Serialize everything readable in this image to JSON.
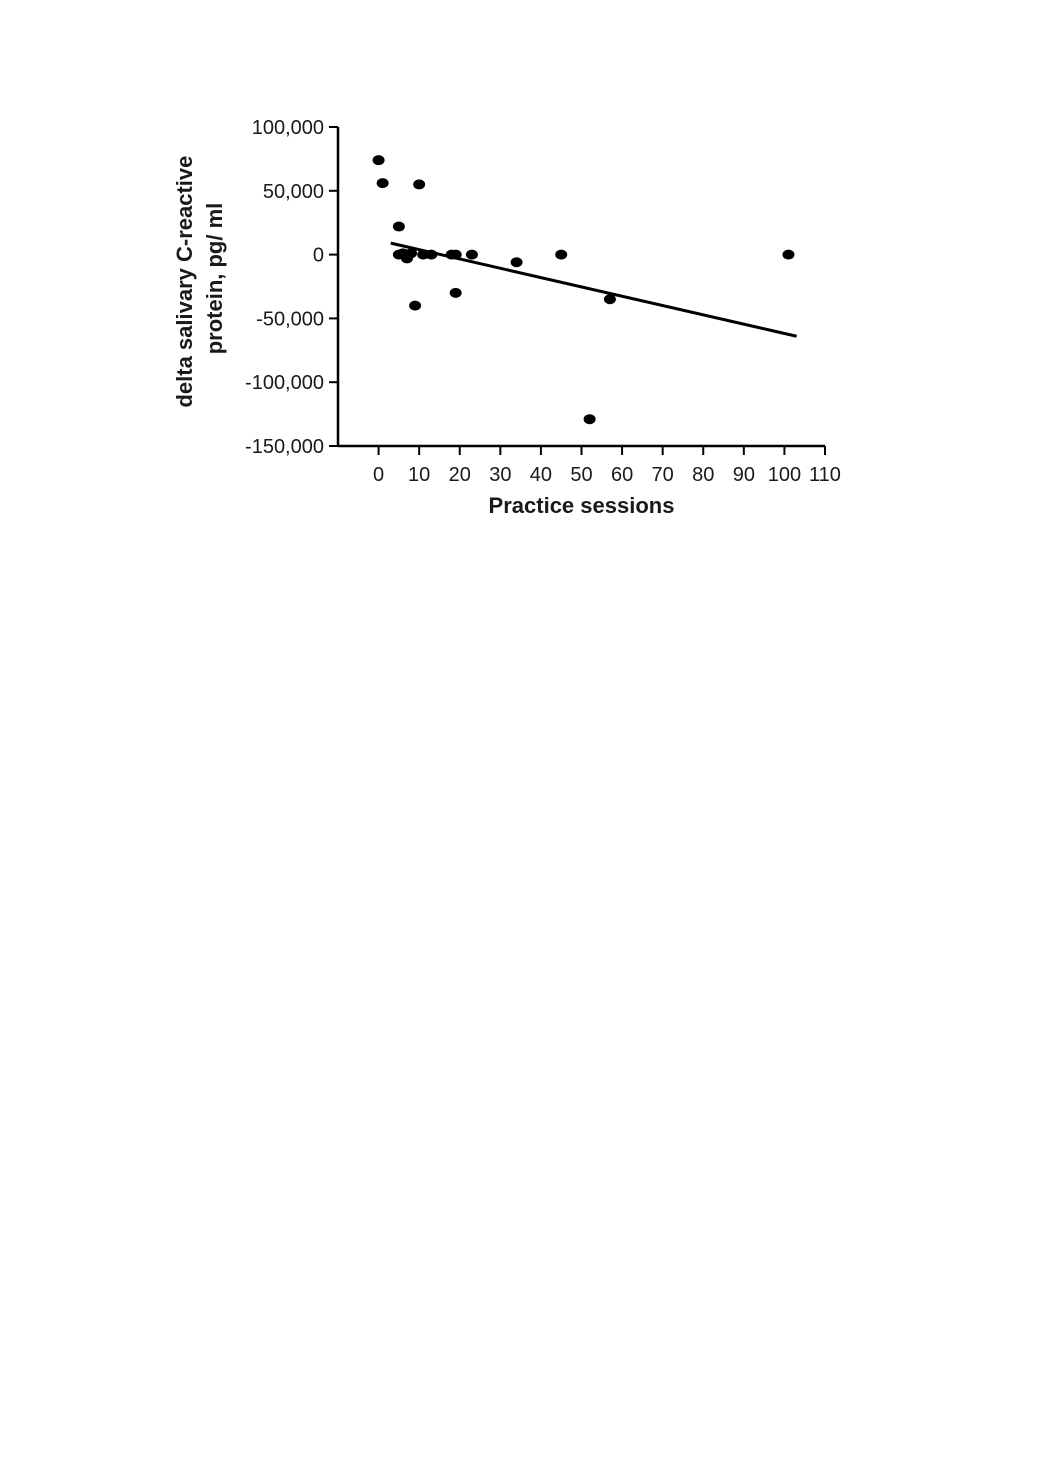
{
  "chart_data": {
    "type": "scatter",
    "xlabel": "Practice sessions",
    "ylabel_lines": [
      "delta salivary C-reactive",
      "protein, pg/ ml"
    ],
    "xlim": [
      -10,
      110
    ],
    "ylim": [
      -150000,
      100000
    ],
    "x_ticks": [
      0,
      10,
      20,
      30,
      40,
      50,
      60,
      70,
      80,
      90,
      100,
      110
    ],
    "x_tick_labels": [
      "0",
      "10",
      "20",
      "30",
      "40",
      "50",
      "60",
      "70",
      "80",
      "90",
      "100",
      "110"
    ],
    "y_ticks": [
      100000,
      50000,
      0,
      -50000,
      -100000,
      -150000
    ],
    "y_tick_labels": [
      "100,000",
      "50,000",
      "0",
      "-50,000",
      "-100,000",
      "-150,000"
    ],
    "points": [
      {
        "x": 0,
        "y": 74000
      },
      {
        "x": 1,
        "y": 56000
      },
      {
        "x": 10,
        "y": 55000
      },
      {
        "x": 5,
        "y": 22000
      },
      {
        "x": 5,
        "y": 0
      },
      {
        "x": 6,
        "y": 1000
      },
      {
        "x": 7,
        "y": -3000
      },
      {
        "x": 8,
        "y": 1000
      },
      {
        "x": 11,
        "y": 0
      },
      {
        "x": 13,
        "y": 0
      },
      {
        "x": 18,
        "y": 0
      },
      {
        "x": 19,
        "y": 0
      },
      {
        "x": 23,
        "y": 0
      },
      {
        "x": 9,
        "y": -40000
      },
      {
        "x": 19,
        "y": -30000
      },
      {
        "x": 34,
        "y": -6000
      },
      {
        "x": 45,
        "y": 0
      },
      {
        "x": 57,
        "y": -35000
      },
      {
        "x": 52,
        "y": -129000
      },
      {
        "x": 101,
        "y": 0
      }
    ],
    "trendline": {
      "x": [
        3,
        103
      ],
      "y": [
        9000,
        -64000
      ]
    },
    "grid": false,
    "legend": "none"
  }
}
